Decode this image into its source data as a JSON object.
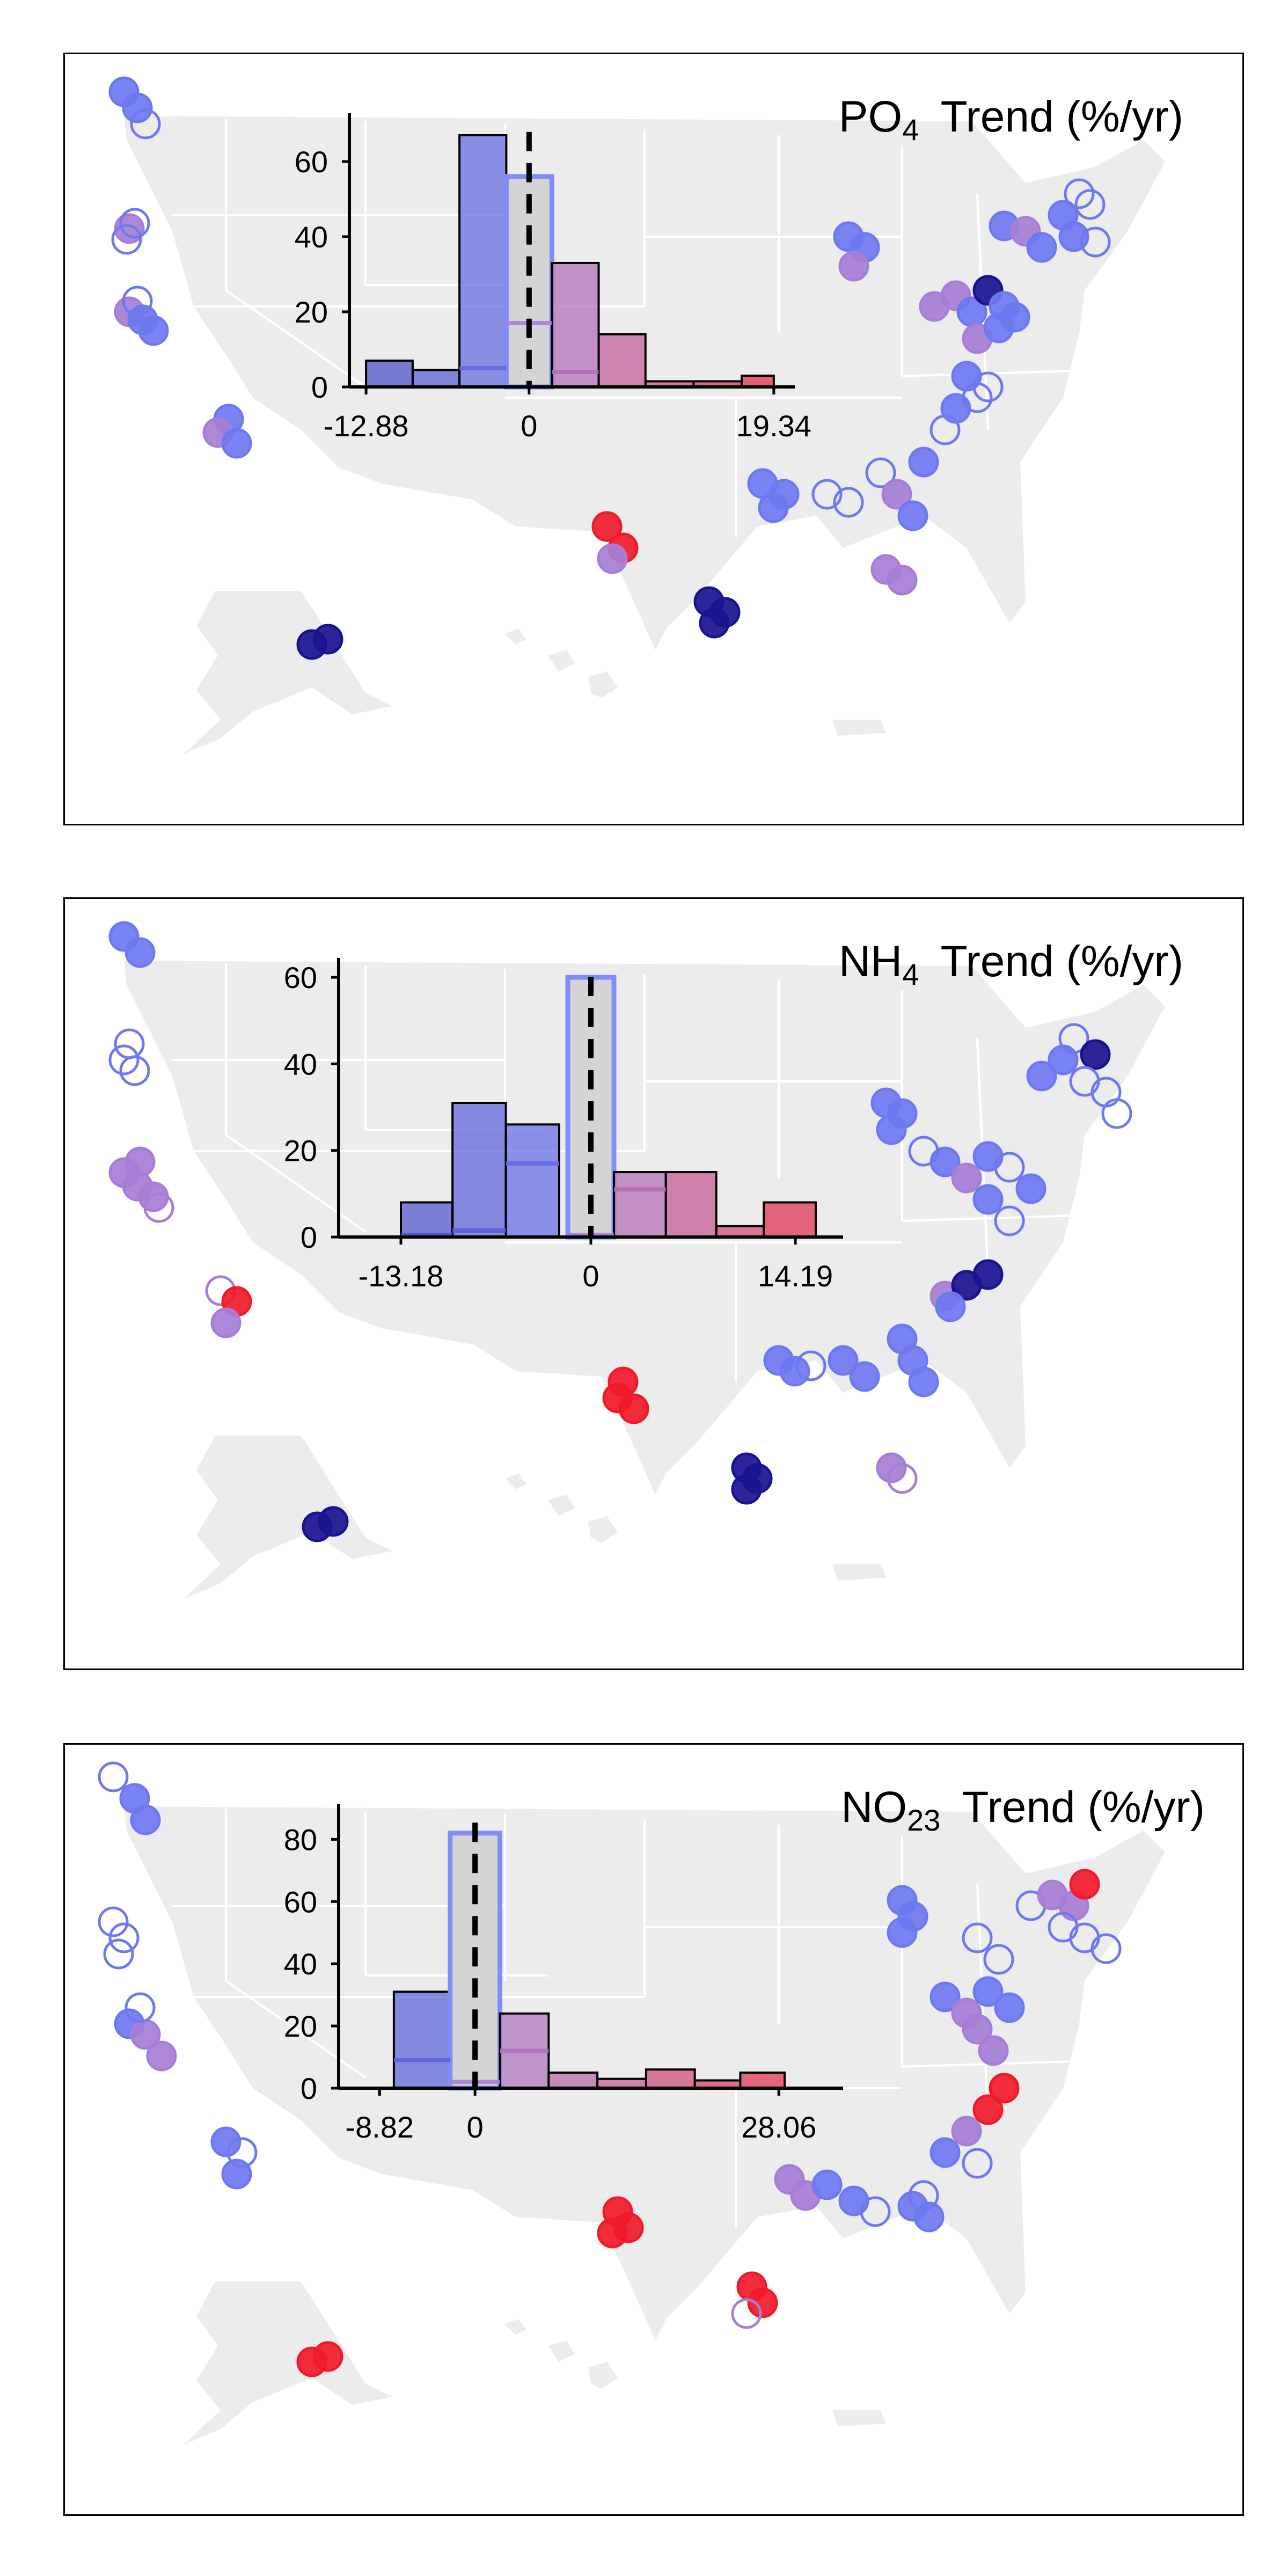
{
  "panels": [
    {
      "title_main": "PO",
      "title_sub": "4",
      "title_rest": "Trend (%/yr)",
      "chart_data": {
        "type": "bar",
        "subtype": "histogram-inset-over-site-map",
        "x_tick_labels": [
          "-12.88",
          "0",
          "19.34"
        ],
        "x_ticks": [
          -12.88,
          0,
          19.34
        ],
        "y_ticks": [
          0,
          20,
          40,
          60
        ],
        "ylim": [
          0,
          70
        ],
        "xlim": [
          -14.2,
          21
        ],
        "zero_line": "dashed",
        "bins": [
          {
            "x0": -12.88,
            "x1": -9.2,
            "value": 7
          },
          {
            "x0": -9.2,
            "x1": -5.5,
            "value": 4.5
          },
          {
            "x0": -5.5,
            "x1": -1.8,
            "value": 67
          },
          {
            "x0": -1.8,
            "x1": 1.8,
            "value": 56
          },
          {
            "x0": 1.8,
            "x1": 5.5,
            "value": 33
          },
          {
            "x0": 5.5,
            "x1": 9.2,
            "value": 14
          },
          {
            "x0": 9.2,
            "x1": 13.0,
            "value": 1.5
          },
          {
            "x0": 13.0,
            "x1": 16.8,
            "value": 1.5
          },
          {
            "x0": 16.8,
            "x1": 19.34,
            "value": 3
          }
        ],
        "nonsignificant_bin": 3,
        "significant_counts": [
          {
            "bin": 2,
            "value": 5
          },
          {
            "bin": 3,
            "value": 17
          },
          {
            "bin": 4,
            "value": 4
          }
        ]
      }
    },
    {
      "title_main": "NH",
      "title_sub": "4",
      "title_rest": "Trend (%/yr)",
      "chart_data": {
        "type": "bar",
        "subtype": "histogram-inset-over-site-map",
        "x_tick_labels": [
          "-13.18",
          "0",
          "14.19"
        ],
        "x_ticks": [
          -13.18,
          0,
          14.19
        ],
        "y_ticks": [
          0,
          20,
          40,
          60
        ],
        "ylim": [
          0,
          62
        ],
        "xlim": [
          -17.5,
          17.5
        ],
        "zero_line": "dashed",
        "bins": [
          {
            "x0": -13.18,
            "x1": -9.6,
            "value": 8
          },
          {
            "x0": -9.6,
            "x1": -5.9,
            "value": 31
          },
          {
            "x0": -5.9,
            "x1": -2.2,
            "value": 26
          },
          {
            "x0": -1.6,
            "x1": 1.6,
            "value": 60
          },
          {
            "x0": 1.6,
            "x1": 5.2,
            "value": 15
          },
          {
            "x0": 5.2,
            "x1": 8.7,
            "value": 15
          },
          {
            "x0": 8.7,
            "x1": 12.0,
            "value": 2.5
          },
          {
            "x0": 12.0,
            "x1": 15.6,
            "value": 8
          }
        ],
        "nonsignificant_bin": 3,
        "significant_counts": [
          {
            "bin": 0,
            "value": 0.5
          },
          {
            "bin": 1,
            "value": 1.5
          },
          {
            "bin": 2,
            "value": 17
          },
          {
            "bin": 3,
            "value": 0.5
          },
          {
            "bin": 4,
            "value": 11
          }
        ]
      }
    },
    {
      "title_main": "NO",
      "title_sub": "23",
      "title_rest": "Trend (%/yr)",
      "chart_data": {
        "type": "bar",
        "subtype": "histogram-inset-over-site-map",
        "x_tick_labels": [
          "-8.82",
          "0",
          "28.06"
        ],
        "x_ticks": [
          -8.82,
          0,
          28.06
        ],
        "y_ticks": [
          0,
          20,
          40,
          60,
          80
        ],
        "ylim": [
          0,
          88
        ],
        "xlim": [
          -12.6,
          34
        ],
        "zero_line": "dashed",
        "bins": [
          {
            "x0": -7.5,
            "x1": -2.3,
            "value": 31
          },
          {
            "x0": -2.3,
            "x1": 2.3,
            "value": 82
          },
          {
            "x0": 2.3,
            "x1": 6.8,
            "value": 24
          },
          {
            "x0": 6.8,
            "x1": 11.3,
            "value": 5
          },
          {
            "x0": 11.3,
            "x1": 15.8,
            "value": 3
          },
          {
            "x0": 15.8,
            "x1": 20.3,
            "value": 6
          },
          {
            "x0": 20.3,
            "x1": 24.5,
            "value": 2.5
          },
          {
            "x0": 24.5,
            "x1": 28.6,
            "value": 5
          }
        ],
        "nonsignificant_bin": 1,
        "significant_counts": [
          {
            "bin": 0,
            "value": 9
          },
          {
            "bin": 1,
            "value": 2
          },
          {
            "bin": 2,
            "value": 12
          }
        ]
      }
    }
  ],
  "colors": {
    "map_land": "#ececec",
    "state_border": "#ffffff",
    "decrease": "#6e78f0",
    "strong_decrease": "#1a138f",
    "mixed": "#a67ed6",
    "increase": "#f01a2a",
    "nonsignificant_fill": "#d4d4d4",
    "nonsignificant_edge": "#7f8ef6",
    "zero_line": "#000000"
  }
}
